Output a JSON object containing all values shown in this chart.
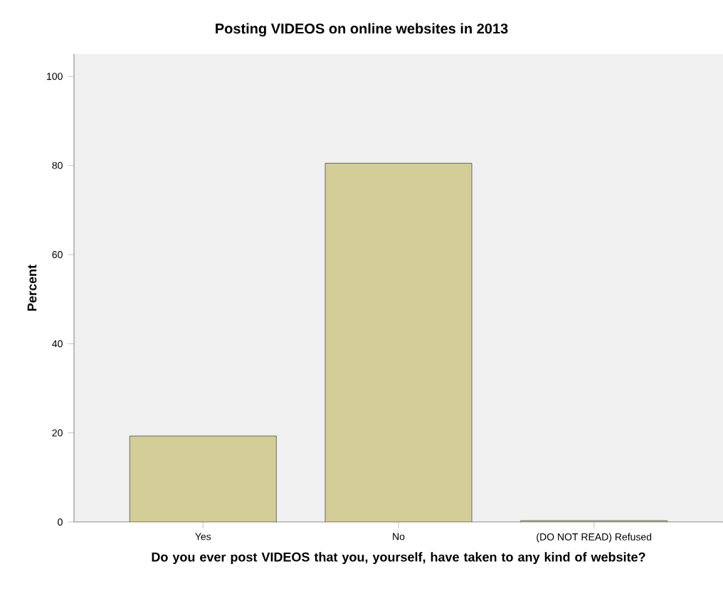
{
  "chart_data": {
    "type": "bar",
    "title": "Posting VIDEOS on online websites in 2013",
    "xlabel": "Do you ever post VIDEOS that you, yourself, have taken to any kind of website?",
    "ylabel": "Percent",
    "categories": [
      "Yes",
      "No",
      "(DO NOT READ) Refused"
    ],
    "values": [
      19.3,
      80.5,
      0.3
    ],
    "color": "#d3ce97",
    "ylim": [
      0,
      105
    ],
    "yticks": [
      0,
      20,
      40,
      60,
      80,
      100
    ],
    "grid": false
  }
}
